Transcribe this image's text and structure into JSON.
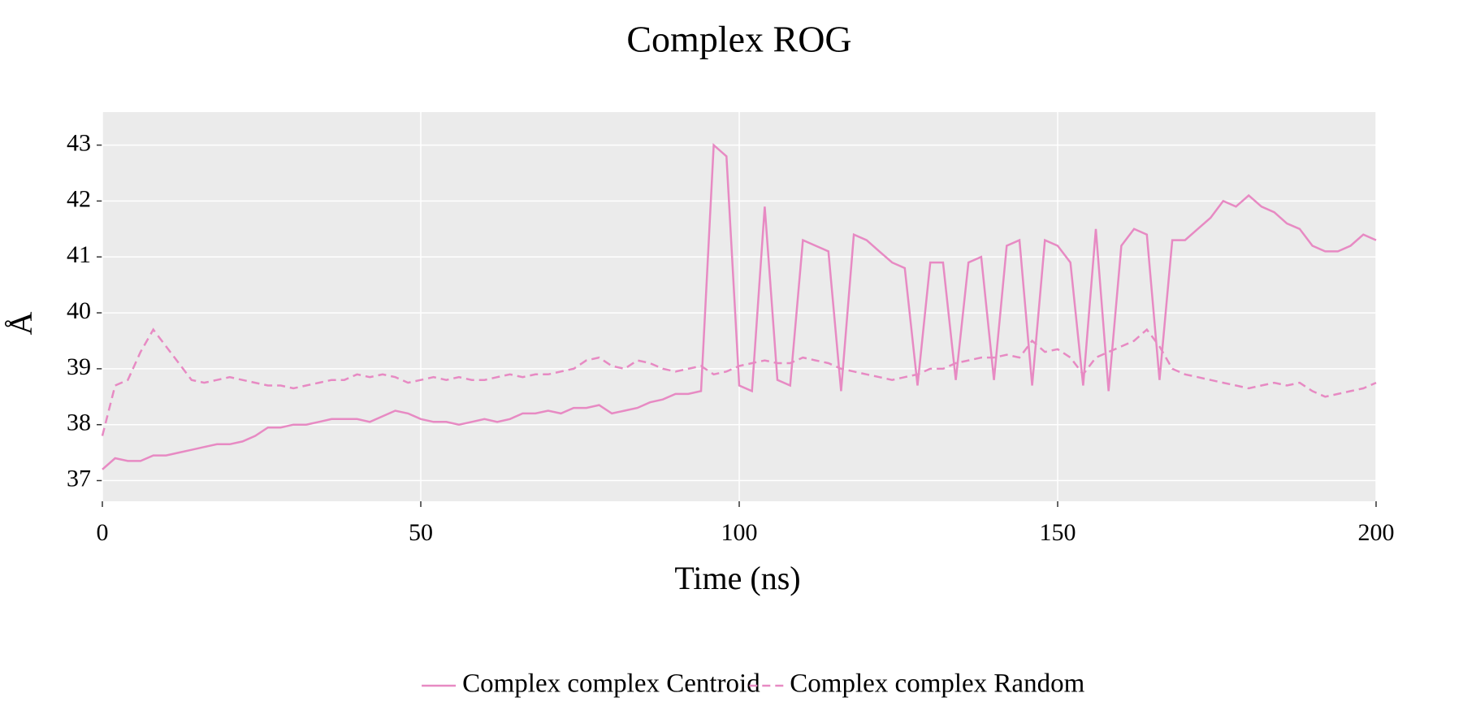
{
  "chart_data": {
    "type": "line",
    "title": "Complex ROG",
    "x_label": "Time (ns)",
    "y_label": "Å",
    "x": [
      0,
      2,
      4,
      6,
      8,
      10,
      12,
      14,
      16,
      18,
      20,
      22,
      24,
      26,
      28,
      30,
      32,
      34,
      36,
      38,
      40,
      42,
      44,
      46,
      48,
      50,
      52,
      54,
      56,
      58,
      60,
      62,
      64,
      66,
      68,
      70,
      72,
      74,
      76,
      78,
      80,
      82,
      84,
      86,
      88,
      90,
      92,
      94,
      96,
      98,
      100,
      102,
      104,
      106,
      108,
      110,
      112,
      114,
      116,
      118,
      120,
      122,
      124,
      126,
      128,
      130,
      132,
      134,
      136,
      138,
      140,
      142,
      144,
      146,
      148,
      150,
      152,
      154,
      156,
      158,
      160,
      162,
      164,
      166,
      168,
      170,
      172,
      174,
      176,
      178,
      180,
      182,
      184,
      186,
      188,
      190,
      192,
      194,
      196,
      198,
      200
    ],
    "series": [
      {
        "name": "Complex complex Centroid",
        "color": "#e78ac3",
        "line_style": "solid",
        "values": [
          37.2,
          37.4,
          37.35,
          37.35,
          37.45,
          37.45,
          37.5,
          37.55,
          37.6,
          37.65,
          37.65,
          37.7,
          37.8,
          37.95,
          37.95,
          38.0,
          38.0,
          38.05,
          38.1,
          38.1,
          38.1,
          38.05,
          38.15,
          38.25,
          38.2,
          38.1,
          38.05,
          38.05,
          38.0,
          38.05,
          38.1,
          38.05,
          38.1,
          38.2,
          38.2,
          38.25,
          38.2,
          38.3,
          38.3,
          38.35,
          38.2,
          38.25,
          38.3,
          38.4,
          38.45,
          38.55,
          38.55,
          38.6,
          43.0,
          42.8,
          38.7,
          38.6,
          41.9,
          38.8,
          38.7,
          41.3,
          41.2,
          41.1,
          38.6,
          41.4,
          41.3,
          41.1,
          40.9,
          40.8,
          38.7,
          40.9,
          40.9,
          38.8,
          40.9,
          41.0,
          38.8,
          41.2,
          41.3,
          38.7,
          41.3,
          41.2,
          40.9,
          38.7,
          41.5,
          38.6,
          41.2,
          41.5,
          41.4,
          38.8,
          41.3,
          41.3,
          41.5,
          41.7,
          42.0,
          41.9,
          42.1,
          41.9,
          41.8,
          41.6,
          41.5,
          41.2,
          41.1,
          41.1,
          41.2,
          41.4,
          41.3
        ]
      },
      {
        "name": "Complex complex Random",
        "color": "#e78ac3",
        "line_style": "dashed",
        "values": [
          37.8,
          38.7,
          38.8,
          39.3,
          39.7,
          39.4,
          39.1,
          38.8,
          38.75,
          38.8,
          38.85,
          38.8,
          38.75,
          38.7,
          38.7,
          38.65,
          38.7,
          38.75,
          38.8,
          38.8,
          38.9,
          38.85,
          38.9,
          38.85,
          38.75,
          38.8,
          38.85,
          38.8,
          38.85,
          38.8,
          38.8,
          38.85,
          38.9,
          38.85,
          38.9,
          38.9,
          38.95,
          39.0,
          39.15,
          39.2,
          39.05,
          39.0,
          39.15,
          39.1,
          39.0,
          38.95,
          39.0,
          39.05,
          38.9,
          38.95,
          39.05,
          39.1,
          39.15,
          39.1,
          39.1,
          39.2,
          39.15,
          39.1,
          39.0,
          38.95,
          38.9,
          38.85,
          38.8,
          38.85,
          38.9,
          39.0,
          39.0,
          39.1,
          39.15,
          39.2,
          39.2,
          39.25,
          39.2,
          39.5,
          39.3,
          39.35,
          39.2,
          38.9,
          39.2,
          39.3,
          39.4,
          39.5,
          39.7,
          39.4,
          39.0,
          38.9,
          38.85,
          38.8,
          38.75,
          38.7,
          38.65,
          38.7,
          38.75,
          38.7,
          38.75,
          38.6,
          38.5,
          38.55,
          38.6,
          38.65,
          38.75
        ]
      }
    ],
    "xlim": [
      0,
      200
    ],
    "xticks": [
      0,
      50,
      100,
      150,
      200
    ],
    "ylim": [
      36.63,
      43.59
    ],
    "yticks": [
      37,
      38,
      39,
      40,
      41,
      42,
      43
    ],
    "grid": true,
    "legend": "bottom"
  }
}
